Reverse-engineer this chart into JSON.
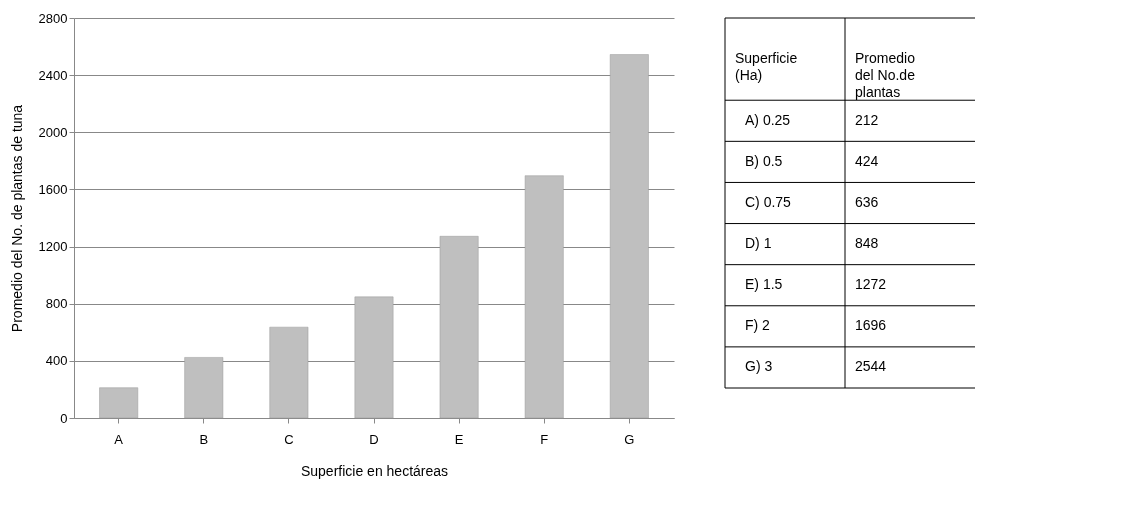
{
  "chart_data": {
    "type": "bar",
    "xlabel": "Superficie en hectáreas",
    "ylabel": "Promedio del No. de plantas de tuna",
    "categories": [
      "A",
      "B",
      "C",
      "D",
      "E",
      "F",
      "G"
    ],
    "values": [
      212,
      424,
      636,
      848,
      1272,
      1696,
      2544
    ],
    "color": "#bfbfbf",
    "ylim": [
      0,
      2800
    ],
    "yticks": [
      0,
      400,
      800,
      1200,
      1600,
      2000,
      2400,
      2800
    ],
    "grid": "y",
    "annotations": [
      "Superficie (Ha)",
      "Promedio del No.de plantas",
      "A) 0.25",
      "212",
      "B) 0.5",
      "424",
      "C) 0.75",
      "636",
      "D) 1",
      "848",
      "E) 1.5",
      "1272",
      "F) 2",
      "1696",
      "G) 3",
      "2544"
    ]
  }
}
